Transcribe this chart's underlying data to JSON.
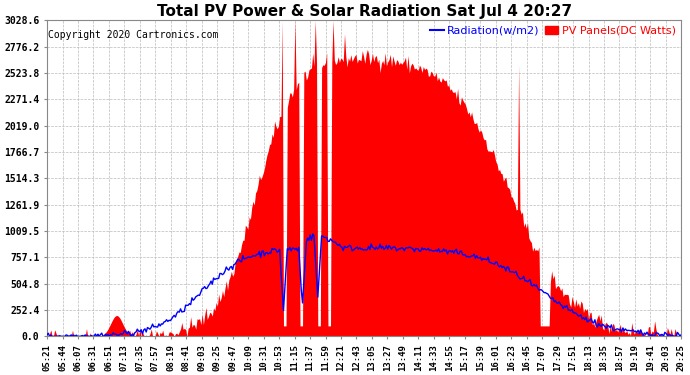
{
  "title": "Total PV Power & Solar Radiation Sat Jul 4 20:27",
  "copyright": "Copyright 2020 Cartronics.com",
  "legend_radiation": "Radiation(w/m2)",
  "legend_pv": "PV Panels(DC Watts)",
  "ymax": 3028.6,
  "yticks": [
    0.0,
    252.4,
    504.8,
    757.1,
    1009.5,
    1261.9,
    1514.3,
    1766.7,
    2019.0,
    2271.4,
    2523.8,
    2776.2,
    3028.6
  ],
  "background_color": "#ffffff",
  "plot_bg_color": "#ffffff",
  "grid_color": "#bbbbbb",
  "pv_fill_color": "#ff0000",
  "radiation_color": "#0000ff",
  "x_labels": [
    "05:21",
    "05:44",
    "06:07",
    "06:31",
    "06:51",
    "07:13",
    "07:35",
    "07:57",
    "08:19",
    "08:41",
    "09:03",
    "09:25",
    "09:47",
    "10:09",
    "10:31",
    "10:53",
    "11:15",
    "11:37",
    "11:59",
    "12:21",
    "12:43",
    "13:05",
    "13:27",
    "13:49",
    "14:11",
    "14:33",
    "14:55",
    "15:17",
    "15:39",
    "16:01",
    "16:23",
    "16:45",
    "17:07",
    "17:29",
    "17:51",
    "18:13",
    "18:35",
    "18:57",
    "19:19",
    "19:41",
    "20:03",
    "20:25"
  ],
  "title_fontsize": 11,
  "copyright_fontsize": 7,
  "legend_fontsize": 8,
  "tick_fontsize": 6.5,
  "ytick_fontsize": 7
}
